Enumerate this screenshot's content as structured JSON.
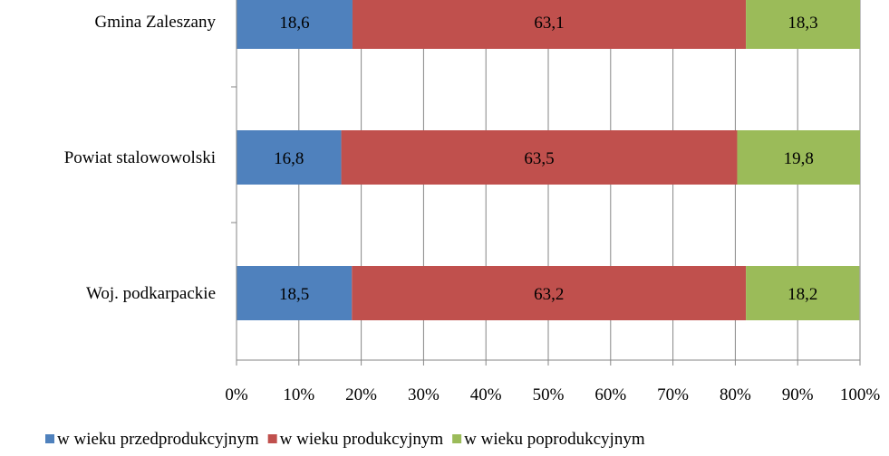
{
  "chart_data": {
    "type": "bar",
    "orientation": "horizontal",
    "stacked": "percent",
    "categories": [
      "Gmina Zaleszany",
      "Powiat stalowowolski",
      "Woj. podkarpackie"
    ],
    "series": [
      {
        "name": "w wieku przedprodukcyjnym",
        "values": [
          18.6,
          16.8,
          18.5
        ],
        "labels": [
          "18,6",
          "16,8",
          "18,5"
        ],
        "color": "#4f81bd"
      },
      {
        "name": "w wieku produkcyjnym",
        "values": [
          63.1,
          63.5,
          63.2
        ],
        "labels": [
          "63,1",
          "63,5",
          "63,2"
        ],
        "color": "#c0504d"
      },
      {
        "name": "w wieku poprodukcyjnym",
        "values": [
          18.3,
          19.8,
          18.2
        ],
        "labels": [
          "18,3",
          "19,8",
          "18,2"
        ],
        "color": "#9bbb59"
      }
    ],
    "xticks": [
      "0%",
      "10%",
      "20%",
      "30%",
      "40%",
      "50%",
      "60%",
      "70%",
      "80%",
      "90%",
      "100%"
    ],
    "xlim": [
      0,
      100
    ],
    "title": "",
    "xlabel": "",
    "ylabel": "",
    "grid": "vertical",
    "legend": "bottom"
  }
}
